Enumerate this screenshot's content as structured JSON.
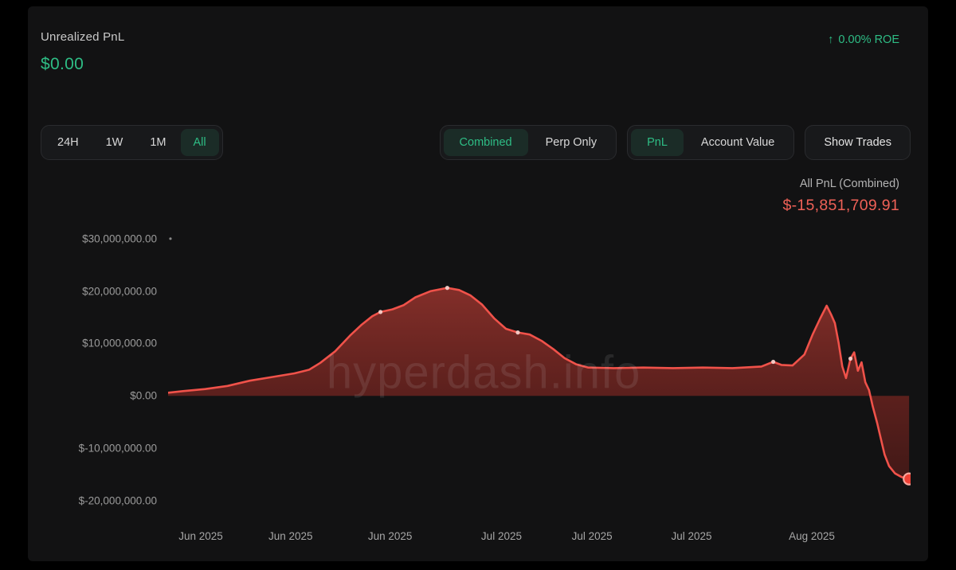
{
  "colors": {
    "accent_green": "#2ebd85",
    "loss_red": "#ef6157",
    "line_red": "#f0524a",
    "panel_bg": "#121213"
  },
  "header": {
    "unrealized_pnl_label": "Unrealized PnL",
    "unrealized_pnl_value": "$0.00",
    "roe_arrow": "↑",
    "roe_value": "0.00% ROE"
  },
  "controls": {
    "time_ranges": [
      {
        "label": "24H",
        "selected": false
      },
      {
        "label": "1W",
        "selected": false
      },
      {
        "label": "1M",
        "selected": false
      },
      {
        "label": "All",
        "selected": true
      }
    ],
    "view_toggle": [
      {
        "label": "Combined",
        "selected": true
      },
      {
        "label": "Perp Only",
        "selected": false
      }
    ],
    "metric_toggle": [
      {
        "label": "PnL",
        "selected": true
      },
      {
        "label": "Account Value",
        "selected": false
      }
    ],
    "show_trades_label": "Show Trades"
  },
  "chart": {
    "legend_label": "All PnL (Combined)",
    "legend_value": "$-15,851,709.91",
    "watermark": "hyperdash.info"
  },
  "chart_data": {
    "type": "area",
    "series_name": "All PnL (Combined)",
    "unit": "USD millions",
    "final_value_usd": -15851709.91,
    "ylim_millions": [
      -23.5,
      33
    ],
    "grid": "off",
    "y_ticks": [
      {
        "value_millions": 30,
        "label": "$30,000,000.00"
      },
      {
        "value_millions": 20,
        "label": "$20,000,000.00"
      },
      {
        "value_millions": 10,
        "label": "$10,000,000.00"
      },
      {
        "value_millions": 0,
        "label": "$0.00"
      },
      {
        "value_millions": -10,
        "label": "$-10,000,000.00"
      },
      {
        "value_millions": -20,
        "label": "$-20,000,000.00"
      }
    ],
    "x_ticks": [
      {
        "pos": 4.4,
        "label": "Jun 2025"
      },
      {
        "pos": 16.5,
        "label": "Jun 2025"
      },
      {
        "pos": 29.9,
        "label": "Jun 2025"
      },
      {
        "pos": 44.9,
        "label": "Jul 2025"
      },
      {
        "pos": 57.1,
        "label": "Jul 2025"
      },
      {
        "pos": 70.5,
        "label": "Jul 2025"
      },
      {
        "pos": 86.7,
        "label": "Aug 2025"
      }
    ],
    "points": [
      [
        0,
        0.6
      ],
      [
        2,
        0.9
      ],
      [
        5,
        1.3
      ],
      [
        8,
        1.9
      ],
      [
        11,
        2.9
      ],
      [
        14,
        3.6
      ],
      [
        17,
        4.3
      ],
      [
        19,
        5.0
      ],
      [
        20.5,
        6.3
      ],
      [
        22.5,
        8.5
      ],
      [
        24.5,
        11.5
      ],
      [
        26,
        13.5
      ],
      [
        27.5,
        15.2
      ],
      [
        28.6,
        16.0
      ],
      [
        30.2,
        16.5
      ],
      [
        31.7,
        17.3
      ],
      [
        33.3,
        18.8
      ],
      [
        35.4,
        20.0
      ],
      [
        37.6,
        20.6
      ],
      [
        39.2,
        20.2
      ],
      [
        40.7,
        19.2
      ],
      [
        42.3,
        17.4
      ],
      [
        43.9,
        14.8
      ],
      [
        45.5,
        12.8
      ],
      [
        47.1,
        12.1
      ],
      [
        48.7,
        11.7
      ],
      [
        50.3,
        10.5
      ],
      [
        51.9,
        8.9
      ],
      [
        53.4,
        7.2
      ],
      [
        55,
        6.0
      ],
      [
        56.6,
        5.4
      ],
      [
        60,
        5.3
      ],
      [
        64,
        5.4
      ],
      [
        68,
        5.3
      ],
      [
        72,
        5.4
      ],
      [
        76,
        5.3
      ],
      [
        79.9,
        5.6
      ],
      [
        81.5,
        6.5
      ],
      [
        82.6,
        5.9
      ],
      [
        84.1,
        5.8
      ],
      [
        85.7,
        7.9
      ],
      [
        86.8,
        11.7
      ],
      [
        87.8,
        14.7
      ],
      [
        88.7,
        17.2
      ],
      [
        89.3,
        15.5
      ],
      [
        89.8,
        13.9
      ],
      [
        90.3,
        10.2
      ],
      [
        90.8,
        5.6
      ],
      [
        91.3,
        3.4
      ],
      [
        91.9,
        7.1
      ],
      [
        92.4,
        8.3
      ],
      [
        92.9,
        4.8
      ],
      [
        93.4,
        6.4
      ],
      [
        93.9,
        2.6
      ],
      [
        94.4,
        1.1
      ],
      [
        94.9,
        -2.0
      ],
      [
        95.5,
        -5.2
      ],
      [
        96.0,
        -8.2
      ],
      [
        96.5,
        -11.2
      ],
      [
        97.1,
        -13.4
      ],
      [
        97.9,
        -14.8
      ],
      [
        98.8,
        -15.5
      ],
      [
        99.8,
        -15.85
      ]
    ],
    "markers": [
      [
        28.6,
        16.0
      ],
      [
        37.6,
        20.6
      ],
      [
        47.1,
        12.1
      ],
      [
        81.5,
        6.5
      ],
      [
        91.9,
        7.1
      ]
    ],
    "end_dot": [
      99.8,
      -15.85
    ]
  }
}
